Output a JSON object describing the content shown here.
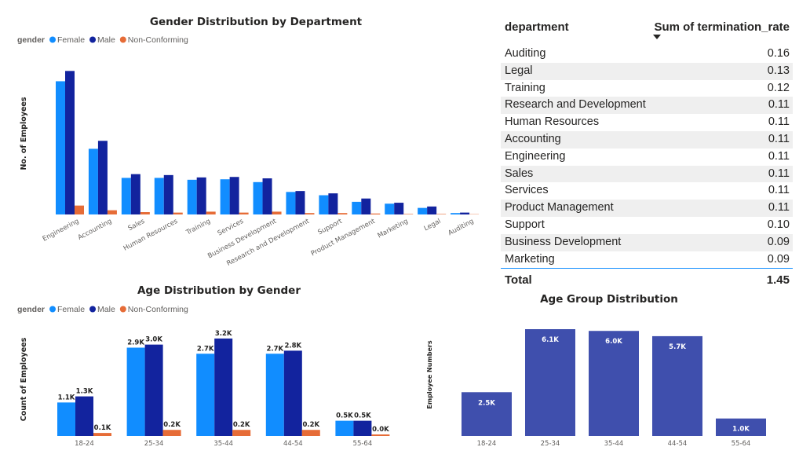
{
  "colors": {
    "female": "#118dff",
    "male": "#12239e",
    "nonconforming": "#e66c37",
    "age_group": "#3f4fad"
  },
  "chart_data": [
    {
      "id": "gender_by_department",
      "type": "bar",
      "title": "Gender Distribution by Department",
      "legend_title": "gender",
      "legend_position": "top-left",
      "ylabel": "No. of Employees",
      "xlabel": "",
      "grid": false,
      "ylim": [
        0,
        1700
      ],
      "categories": [
        "Engineering",
        "Accounting",
        "Sales",
        "Human Resources",
        "Training",
        "Services",
        "Business Development",
        "Research and Development",
        "Support",
        "Product Management",
        "Marketing",
        "Legal",
        "Auditing"
      ],
      "series": [
        {
          "name": "Female",
          "values": [
            1420,
            700,
            390,
            390,
            370,
            375,
            345,
            240,
            205,
            135,
            115,
            70,
            15
          ]
        },
        {
          "name": "Male",
          "values": [
            1530,
            785,
            430,
            420,
            395,
            400,
            385,
            250,
            225,
            170,
            125,
            85,
            20
          ]
        },
        {
          "name": "Non-Conforming",
          "values": [
            95,
            45,
            25,
            20,
            30,
            20,
            30,
            15,
            15,
            10,
            5,
            5,
            3
          ]
        }
      ]
    },
    {
      "id": "age_by_gender",
      "type": "bar",
      "title": "Age Distribution by Gender",
      "legend_title": "gender",
      "legend_position": "top-left",
      "ylabel": "Count of Employees",
      "xlabel": "",
      "grid": false,
      "ylim": [
        0,
        3300
      ],
      "categories": [
        "18-24",
        "25-34",
        "35-44",
        "44-54",
        "55-64"
      ],
      "series": [
        {
          "name": "Female",
          "values": [
            1100,
            2900,
            2700,
            2700,
            500
          ],
          "labels": [
            "1.1K",
            "2.9K",
            "2.7K",
            "2.7K",
            "0.5K"
          ]
        },
        {
          "name": "Male",
          "values": [
            1300,
            3000,
            3200,
            2800,
            500
          ],
          "labels": [
            "1.3K",
            "3.0K",
            "3.2K",
            "2.8K",
            "0.5K"
          ]
        },
        {
          "name": "Non-Conforming",
          "values": [
            100,
            200,
            200,
            200,
            40
          ],
          "labels": [
            "0.1K",
            "0.2K",
            "0.2K",
            "0.2K",
            "0.0K"
          ]
        }
      ]
    },
    {
      "id": "age_group_distribution",
      "type": "bar",
      "title": "Age Group Distribution",
      "ylabel": "Employee Numbers",
      "xlabel": "",
      "grid": false,
      "ylim": [
        0,
        6100
      ],
      "categories": [
        "18-24",
        "25-34",
        "35-44",
        "44-54",
        "55-64"
      ],
      "values": [
        2500,
        6100,
        6000,
        5700,
        1000
      ],
      "labels": [
        "2.5K",
        "6.1K",
        "6.0K",
        "5.7K",
        "1.0K"
      ]
    },
    {
      "id": "termination_rate_table",
      "type": "table",
      "columns": [
        "department",
        "Sum of termination_rate"
      ],
      "sort": "descending",
      "rows": [
        [
          "Auditing",
          "0.16"
        ],
        [
          "Legal",
          "0.13"
        ],
        [
          "Training",
          "0.12"
        ],
        [
          "Research and Development",
          "0.11"
        ],
        [
          "Human Resources",
          "0.11"
        ],
        [
          "Accounting",
          "0.11"
        ],
        [
          "Engineering",
          "0.11"
        ],
        [
          "Sales",
          "0.11"
        ],
        [
          "Services",
          "0.11"
        ],
        [
          "Product Management",
          "0.11"
        ],
        [
          "Support",
          "0.10"
        ],
        [
          "Business Development",
          "0.09"
        ],
        [
          "Marketing",
          "0.09"
        ]
      ],
      "total": [
        "Total",
        "1.45"
      ]
    }
  ]
}
